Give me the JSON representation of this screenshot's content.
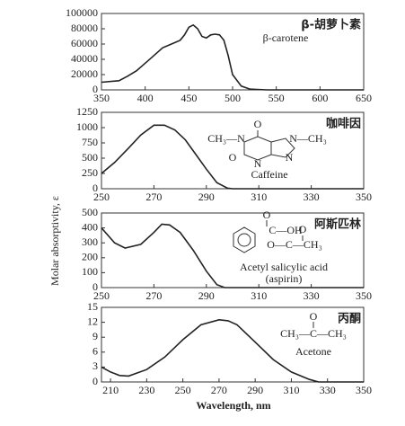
{
  "chart_data": [
    {
      "type": "line",
      "name": "β-胡萝卜素",
      "annotations": [
        "β-carotene"
      ],
      "x": [
        350,
        370,
        380,
        390,
        400,
        410,
        420,
        430,
        440,
        445,
        450,
        455,
        460,
        465,
        470,
        475,
        480,
        485,
        490,
        495,
        500,
        510,
        520,
        540,
        650
      ],
      "values": [
        10000,
        12000,
        18000,
        25000,
        35000,
        45000,
        55000,
        60000,
        65000,
        72000,
        82000,
        85000,
        80000,
        70000,
        68000,
        72000,
        73000,
        72000,
        65000,
        45000,
        20000,
        5000,
        1000,
        0,
        0
      ],
      "xlim": [
        350,
        650
      ],
      "ylim": [
        0,
        100000
      ],
      "xticks": [
        350,
        400,
        450,
        500,
        550,
        600,
        650
      ],
      "yticks": [
        0,
        20000,
        40000,
        60000,
        80000,
        100000
      ]
    },
    {
      "type": "line",
      "name": "咖啡因",
      "ylabel": "Molar absorptivity, ε",
      "annotations": [
        "O",
        "CH₃—N",
        "N—CH₃",
        "O",
        "N",
        "N",
        "Caffeine"
      ],
      "x": [
        250,
        255,
        260,
        265,
        270,
        274,
        278,
        282,
        286,
        290,
        294,
        298,
        300,
        350
      ],
      "values": [
        250,
        430,
        650,
        880,
        1040,
        1040,
        960,
        800,
        560,
        320,
        100,
        10,
        0,
        0
      ],
      "xlim": [
        250,
        350
      ],
      "ylim": [
        0,
        1250
      ],
      "xticks": [
        250,
        270,
        290,
        310,
        330,
        350
      ],
      "yticks": [
        0,
        250,
        500,
        750,
        1000,
        1250
      ]
    },
    {
      "type": "line",
      "name": "阿斯匹林",
      "annotations": [
        "O",
        "C—OH",
        "O",
        "O—C—CH₃",
        "Acetyl salicylic acid",
        "(aspirin)"
      ],
      "x": [
        250,
        255,
        259,
        265,
        270,
        273,
        276,
        280,
        285,
        290,
        294,
        297,
        350
      ],
      "values": [
        400,
        300,
        265,
        290,
        370,
        425,
        420,
        370,
        250,
        110,
        20,
        0,
        0
      ],
      "xlim": [
        250,
        350
      ],
      "ylim": [
        0,
        500
      ],
      "xticks": [
        250,
        270,
        290,
        310,
        330,
        350
      ],
      "yticks": [
        0,
        100,
        200,
        300,
        400,
        500
      ]
    },
    {
      "type": "line",
      "name": "丙酮",
      "xlabel": "Wavelength, nm",
      "annotations": [
        "O",
        "CH₃—C—CH₃",
        "Acetone"
      ],
      "x": [
        205,
        210,
        215,
        220,
        230,
        240,
        250,
        260,
        270,
        275,
        280,
        290,
        300,
        310,
        320,
        325,
        350
      ],
      "values": [
        3,
        2,
        1.3,
        1.2,
        2.5,
        5,
        8.5,
        11.5,
        12.5,
        12.3,
        11.5,
        8,
        4.5,
        2,
        0.5,
        0,
        0
      ],
      "xlim": [
        205,
        350
      ],
      "ylim": [
        0,
        15
      ],
      "xticks": [
        210,
        230,
        250,
        270,
        290,
        310,
        330,
        350
      ],
      "yticks": [
        0,
        3,
        6,
        9,
        12,
        15
      ]
    }
  ]
}
